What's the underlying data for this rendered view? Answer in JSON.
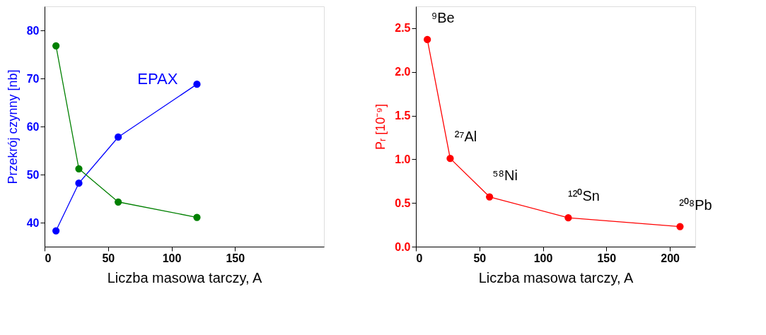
{
  "chart_data": [
    {
      "type": "line",
      "xlabel": "Liczba masowa tarczy, A",
      "ylabel": "Przekrój czynny [nb]",
      "x": [
        9,
        27,
        58,
        120
      ],
      "xlim": [
        0,
        220
      ],
      "xticks": [
        0,
        50,
        100,
        150
      ],
      "ylim": [
        35,
        85
      ],
      "yticks": [
        40,
        50,
        60,
        70,
        80
      ],
      "marker": "circle",
      "line_style": "solid",
      "series": [
        {
          "name": "EPAX",
          "color": "#0000ff",
          "values": [
            38.3,
            48.2,
            57.8,
            68.8
          ]
        },
        {
          "color": "#008000",
          "values": [
            76.8,
            51.2,
            44.3,
            41.1
          ]
        }
      ]
    },
    {
      "type": "line",
      "xlabel": "Liczba masowa tarczy, A",
      "ylabel": "Pᵣ [10⁻⁹]",
      "x": [
        9,
        27,
        58,
        120,
        208
      ],
      "xlim": [
        0,
        220
      ],
      "xticks": [
        0,
        50,
        100,
        150,
        200
      ],
      "ylim": [
        0,
        2.75
      ],
      "yticks": [
        {
          "value": 0,
          "label": "0.0"
        },
        0.5,
        {
          "value": 1,
          "label": "1.0"
        },
        1.5,
        {
          "value": 2,
          "label": "2.0"
        },
        2.5
      ],
      "marker": "circle",
      "line_style": "solid",
      "series": [
        {
          "color": "#ff0000",
          "values": [
            2.37,
            1.01,
            0.57,
            0.33,
            0.23
          ]
        }
      ],
      "annotations": [
        {
          "text": "⁹Be",
          "x": 9,
          "y": 2.37
        },
        {
          "text": "²⁷Al",
          "x": 27,
          "y": 1.01
        },
        {
          "text": "⁵⁸Ni",
          "x": 58,
          "y": 0.57
        },
        {
          "text": "¹²⁰Sn",
          "x": 120,
          "y": 0.33
        },
        {
          "text": "²⁰⁸Pb",
          "x": 208,
          "y": 0.23
        }
      ]
    }
  ]
}
